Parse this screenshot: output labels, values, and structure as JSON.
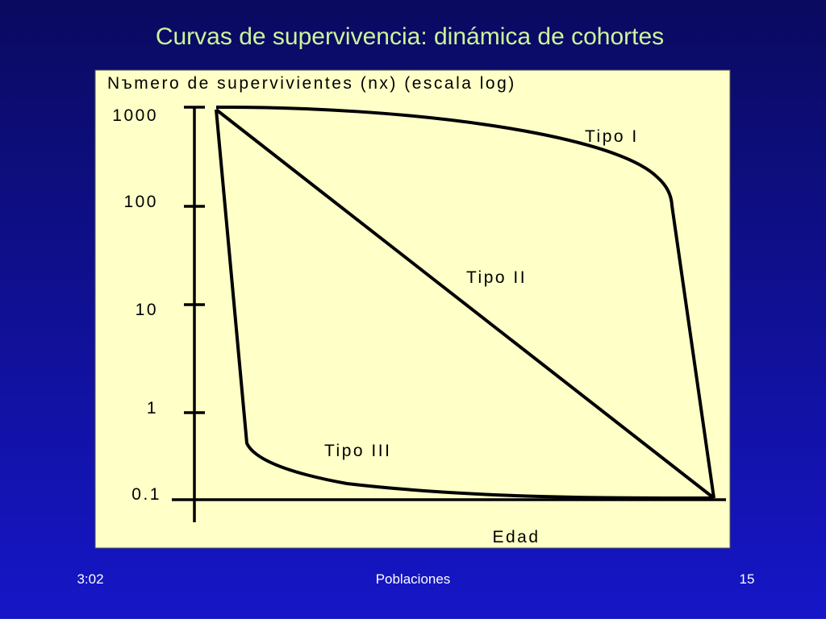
{
  "slide": {
    "title": "Curvas de supervivencia: dinámica de cohortes",
    "diagram": {
      "y_axis_title": "Nъmero de supervivientes (nx) (escala log)",
      "y_labels": [
        "1000",
        "100",
        "10",
        "1",
        "0.1"
      ],
      "x_axis_title": "Edad",
      "curve_labels": [
        "Tipo I",
        "Tipo II",
        "Tipo III"
      ]
    },
    "footer": {
      "left": "3:02",
      "center": "Poblaciones",
      "right": "15"
    }
  }
}
